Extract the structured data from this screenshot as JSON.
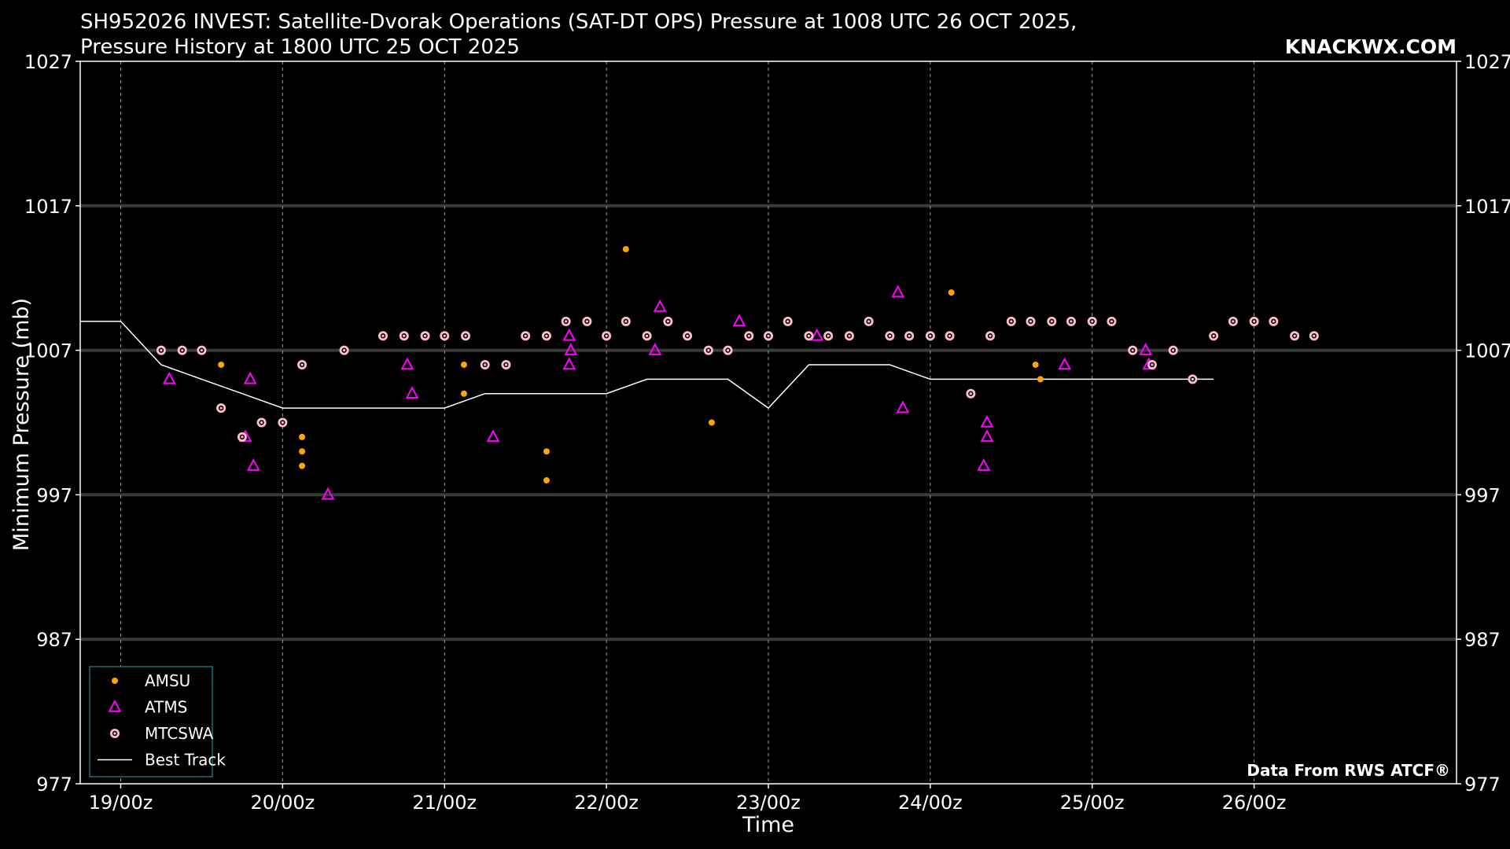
{
  "chart_data": {
    "type": "scatter",
    "title_line1": "SH952026 INVEST: Satellite-Dvorak Operations (SAT-DT OPS) Pressure at 1008 UTC 26 OCT 2025,",
    "title_line2": "Pressure History at 1800 UTC 25 OCT 2025",
    "brand": "KNACKWX.COM",
    "credit": "Data From RWS ATCF®",
    "xlabel": "Time",
    "ylabel": "Minimum Pressure (mb)",
    "ylim": [
      977,
      1027
    ],
    "yticks": [
      977,
      987,
      997,
      1007,
      1017,
      1027
    ],
    "xlim": [
      18.75,
      27.25
    ],
    "xticks": [
      {
        "x": 19,
        "label": "19/00z"
      },
      {
        "x": 20,
        "label": "20/00z"
      },
      {
        "x": 21,
        "label": "21/00z"
      },
      {
        "x": 22,
        "label": "22/00z"
      },
      {
        "x": 23,
        "label": "23/00z"
      },
      {
        "x": 24,
        "label": "24/00z"
      },
      {
        "x": 25,
        "label": "25/00z"
      },
      {
        "x": 26,
        "label": "26/00z"
      }
    ],
    "grid": true,
    "legend_position": "lower-left",
    "colors": {
      "AMSU": "#ffa500",
      "ATMS": "#ff00ff",
      "MTCSWA": "#ffc0cb",
      "Best Track": "#ffffff"
    },
    "series": [
      {
        "name": "AMSU",
        "marker": "dot",
        "points": [
          [
            19.62,
            1006
          ],
          [
            20.12,
            1001
          ],
          [
            20.12,
            1000
          ],
          [
            20.12,
            999
          ],
          [
            21.12,
            1006
          ],
          [
            21.12,
            1004
          ],
          [
            21.63,
            1000
          ],
          [
            21.63,
            998
          ],
          [
            22.12,
            1014
          ],
          [
            22.65,
            1002
          ],
          [
            24.13,
            1011
          ],
          [
            24.65,
            1006
          ],
          [
            24.68,
            1005
          ]
        ]
      },
      {
        "name": "ATMS",
        "marker": "triangle",
        "points": [
          [
            19.3,
            1005
          ],
          [
            19.77,
            1001
          ],
          [
            19.8,
            1005
          ],
          [
            19.82,
            999
          ],
          [
            20.28,
            997
          ],
          [
            20.77,
            1006
          ],
          [
            20.8,
            1004
          ],
          [
            21.3,
            1001
          ],
          [
            21.77,
            1008
          ],
          [
            21.78,
            1007
          ],
          [
            21.77,
            1006
          ],
          [
            22.3,
            1007
          ],
          [
            22.33,
            1010
          ],
          [
            22.82,
            1009
          ],
          [
            23.3,
            1008
          ],
          [
            23.8,
            1011
          ],
          [
            23.83,
            1003
          ],
          [
            24.33,
            999
          ],
          [
            24.35,
            1002
          ],
          [
            24.35,
            1001
          ],
          [
            24.83,
            1006
          ],
          [
            25.33,
            1007
          ],
          [
            25.35,
            1006
          ]
        ]
      },
      {
        "name": "MTCSWA",
        "marker": "ring",
        "points": [
          [
            19.25,
            1007
          ],
          [
            19.38,
            1007
          ],
          [
            19.5,
            1007
          ],
          [
            19.62,
            1003
          ],
          [
            19.75,
            1001
          ],
          [
            19.87,
            1002
          ],
          [
            20.0,
            1002
          ],
          [
            20.12,
            1006
          ],
          [
            20.38,
            1007
          ],
          [
            20.62,
            1008
          ],
          [
            20.75,
            1008
          ],
          [
            20.88,
            1008
          ],
          [
            21.0,
            1008
          ],
          [
            21.13,
            1008
          ],
          [
            21.25,
            1006
          ],
          [
            21.38,
            1006
          ],
          [
            21.5,
            1008
          ],
          [
            21.63,
            1008
          ],
          [
            21.75,
            1009
          ],
          [
            21.88,
            1009
          ],
          [
            22.0,
            1008
          ],
          [
            22.12,
            1009
          ],
          [
            22.25,
            1008
          ],
          [
            22.38,
            1009
          ],
          [
            22.5,
            1008
          ],
          [
            22.63,
            1007
          ],
          [
            22.75,
            1007
          ],
          [
            22.88,
            1008
          ],
          [
            23.0,
            1008
          ],
          [
            23.12,
            1009
          ],
          [
            23.25,
            1008
          ],
          [
            23.37,
            1008
          ],
          [
            23.5,
            1008
          ],
          [
            23.62,
            1009
          ],
          [
            23.75,
            1008
          ],
          [
            23.87,
            1008
          ],
          [
            24.0,
            1008
          ],
          [
            24.12,
            1008
          ],
          [
            24.25,
            1004
          ],
          [
            24.37,
            1008
          ],
          [
            24.5,
            1009
          ],
          [
            24.62,
            1009
          ],
          [
            24.75,
            1009
          ],
          [
            24.87,
            1009
          ],
          [
            25.0,
            1009
          ],
          [
            25.12,
            1009
          ],
          [
            25.25,
            1007
          ],
          [
            25.37,
            1006
          ],
          [
            25.5,
            1007
          ],
          [
            25.62,
            1005
          ],
          [
            25.75,
            1008
          ],
          [
            25.87,
            1009
          ],
          [
            26.0,
            1009
          ],
          [
            26.12,
            1009
          ],
          [
            26.25,
            1008
          ],
          [
            26.37,
            1008
          ]
        ]
      },
      {
        "name": "Best Track",
        "marker": "line",
        "points": [
          [
            18.75,
            1009
          ],
          [
            19.0,
            1009
          ],
          [
            19.25,
            1006
          ],
          [
            19.5,
            1005
          ],
          [
            19.75,
            1004
          ],
          [
            20.0,
            1003
          ],
          [
            20.25,
            1003
          ],
          [
            20.5,
            1003
          ],
          [
            20.75,
            1003
          ],
          [
            21.0,
            1003
          ],
          [
            21.25,
            1004
          ],
          [
            21.5,
            1004
          ],
          [
            21.75,
            1004
          ],
          [
            22.0,
            1004
          ],
          [
            22.25,
            1005
          ],
          [
            22.5,
            1005
          ],
          [
            22.75,
            1005
          ],
          [
            23.0,
            1003
          ],
          [
            23.25,
            1006
          ],
          [
            23.5,
            1006
          ],
          [
            23.75,
            1006
          ],
          [
            24.0,
            1005
          ],
          [
            24.25,
            1005
          ],
          [
            24.5,
            1005
          ],
          [
            24.75,
            1005
          ],
          [
            25.0,
            1005
          ],
          [
            25.25,
            1005
          ],
          [
            25.5,
            1005
          ],
          [
            25.75,
            1005
          ]
        ]
      }
    ]
  }
}
